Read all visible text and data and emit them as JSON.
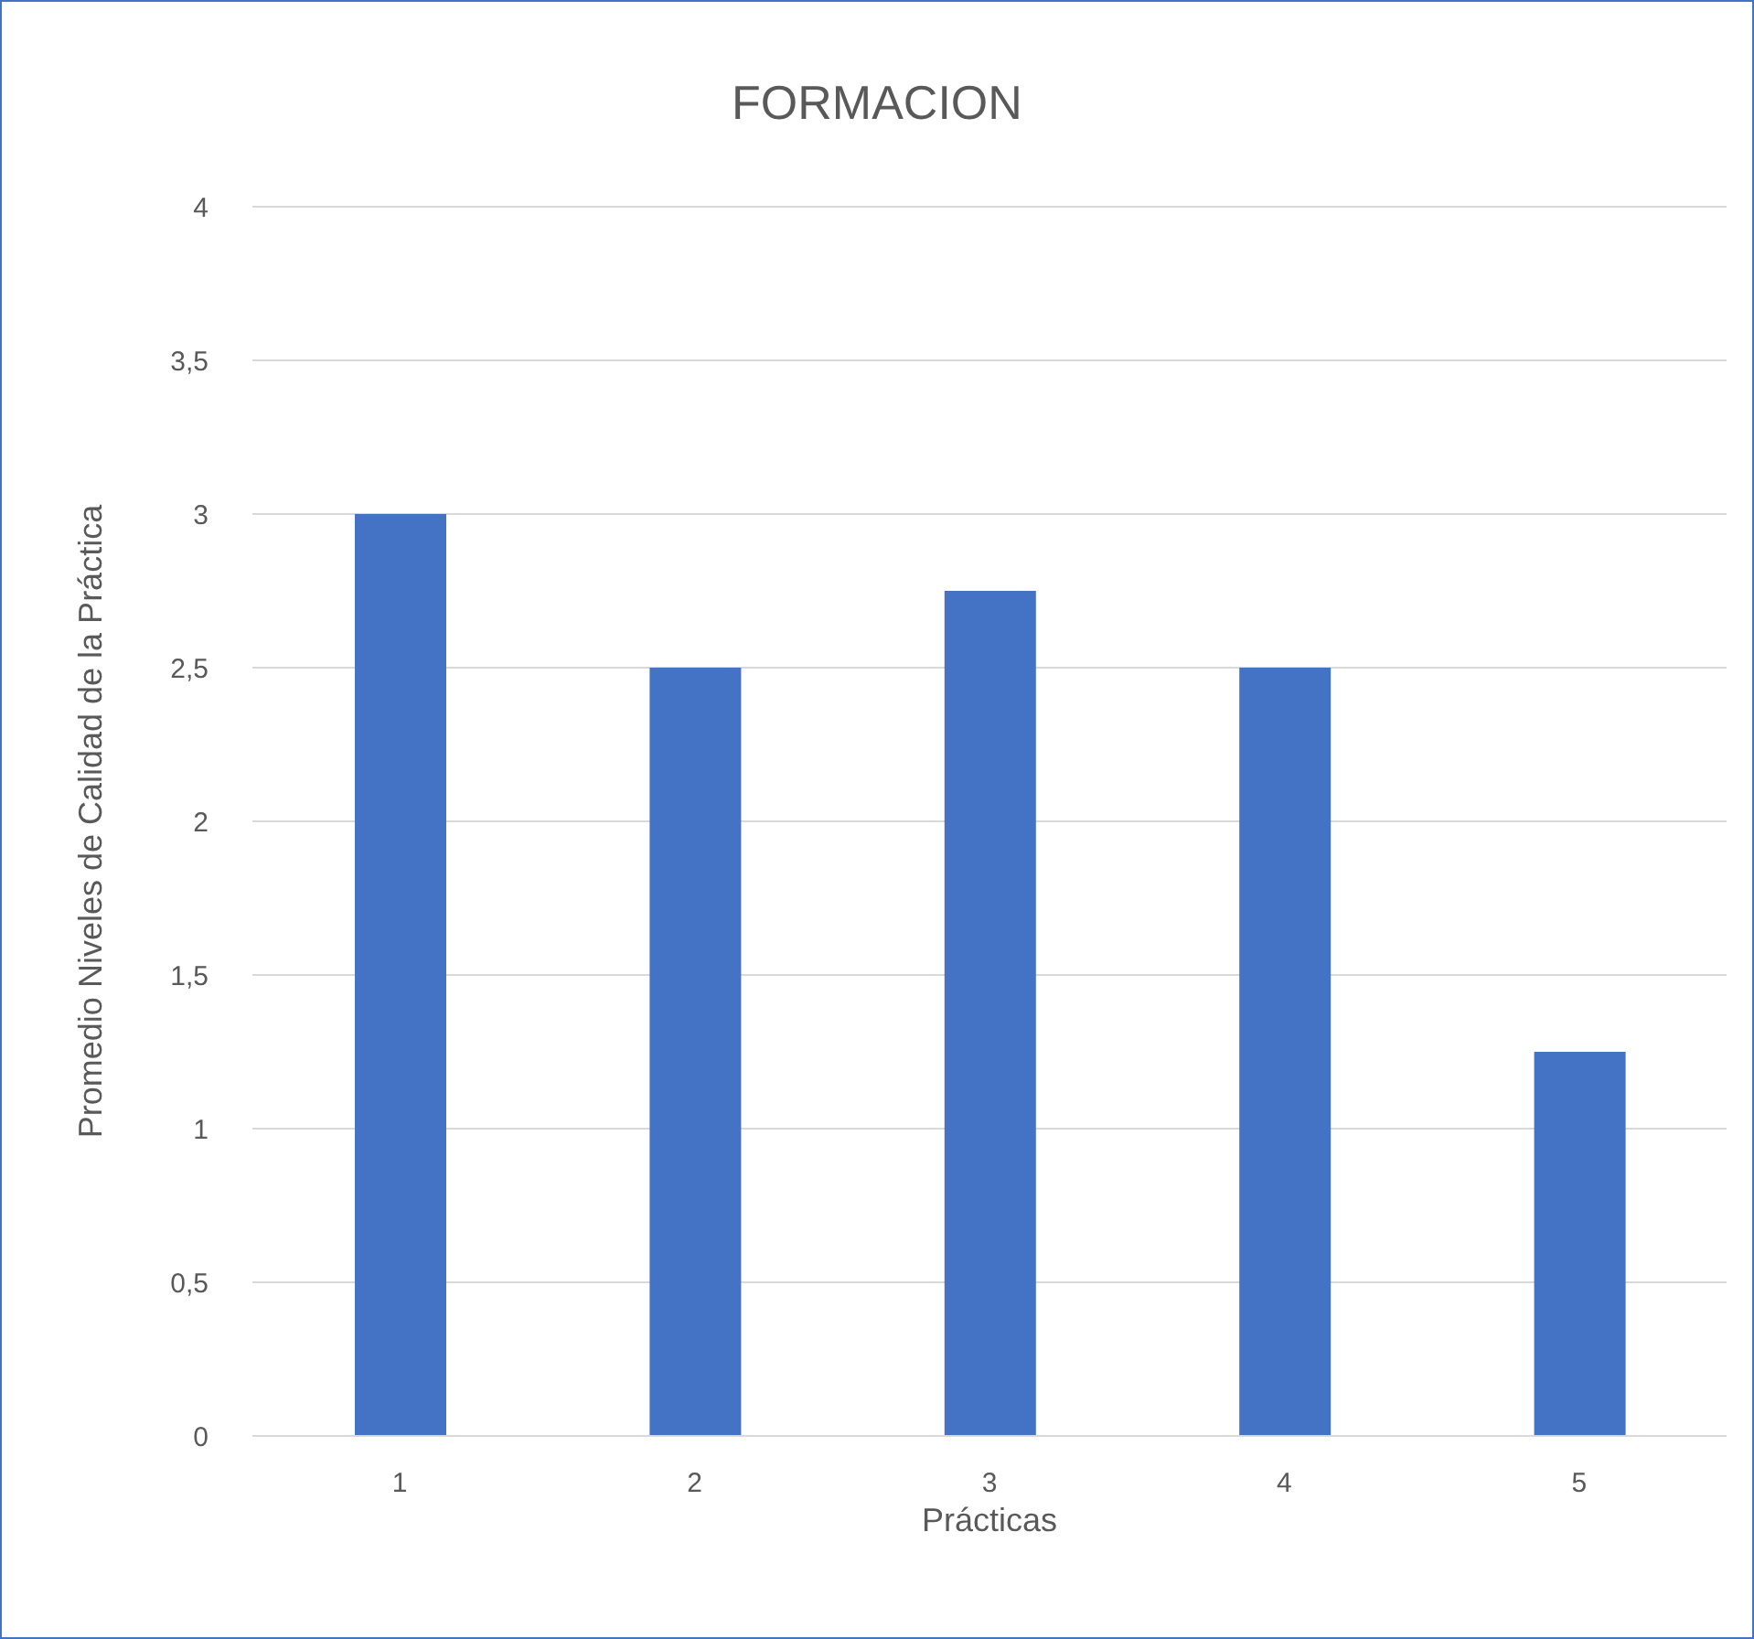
{
  "chart_data": {
    "type": "bar",
    "title": "FORMACION",
    "xlabel": "Prácticas",
    "ylabel": "Promedio Niveles de Calidad de la Práctica",
    "categories": [
      "1",
      "2",
      "3",
      "4",
      "5"
    ],
    "values": [
      3,
      2.5,
      2.75,
      2.5,
      1.25
    ],
    "color": "#4472c4",
    "ylim": [
      0,
      4
    ],
    "yticks": [
      0,
      {
        "value": 0.5,
        "label": "0,5"
      },
      1,
      {
        "value": 1.5,
        "label": "1,5"
      },
      2,
      {
        "value": 2.5,
        "label": "2,5"
      },
      3,
      {
        "value": 3.5,
        "label": "3,5"
      },
      4
    ],
    "grid": "y"
  }
}
